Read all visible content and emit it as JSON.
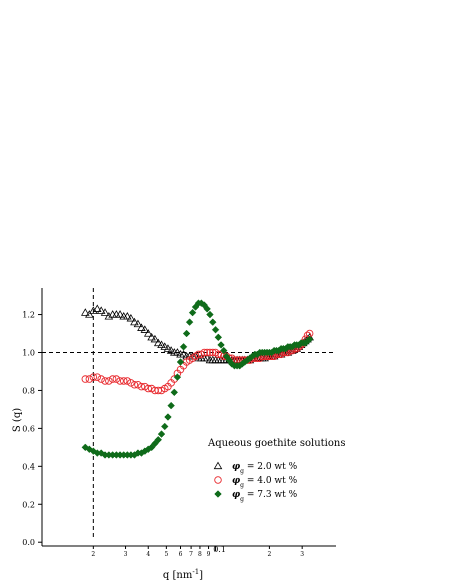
{
  "chart_data": {
    "type": "scatter",
    "title": "",
    "xlabel": "q [nm",
    "xlabel_sup": "-1",
    "xlabel_end": "]",
    "ylabel": "S (q)",
    "xscale": "log",
    "xlim": [
      0.0148,
      0.035
    ],
    "ylim": [
      -0.02,
      1.34
    ],
    "y_ticks": [
      "0.0",
      "0.2",
      "0.4",
      "0.6",
      "0.8",
      "1.0",
      "1.2"
    ],
    "y_tick_values": [
      0.0,
      0.2,
      0.4,
      0.6,
      0.8,
      1.0,
      1.2
    ],
    "x_tick_labels": [
      "2",
      "3",
      "4",
      "5",
      "6",
      "7",
      "8",
      "9",
      "0.1",
      "2",
      "3"
    ],
    "x_tick_values": [
      0.0172,
      0.0189,
      0.0202,
      0.0213,
      0.0222,
      0.0229,
      0.0235,
      0.0241,
      0.0246,
      0.0288,
      0.0317
    ],
    "x_major_label": "0.1",
    "reference_lines": {
      "y": 1.0,
      "x": 0.0172
    },
    "legend": {
      "title": "Aqueous goethite solutions",
      "placement": "lower-right",
      "entries": [
        {
          "symbol": "φ",
          "sub": "g",
          "text": "= 2.0 wt %"
        },
        {
          "symbol": "φ",
          "sub": "g",
          "text": "= 4.0 wt %"
        },
        {
          "symbol": "φ",
          "sub": "g",
          "text": "= 7.3 wt %"
        }
      ]
    },
    "series": [
      {
        "marker": "open-triangle",
        "color": "#000000",
        "x": [
          0.0168,
          0.017,
          0.0172,
          0.0174,
          0.0176,
          0.0178,
          0.018,
          0.0182,
          0.0184,
          0.0186,
          0.0188,
          0.019,
          0.0192,
          0.0194,
          0.0196,
          0.0198,
          0.02,
          0.0202,
          0.0204,
          0.0206,
          0.0208,
          0.021,
          0.0212,
          0.0214,
          0.0216,
          0.0218,
          0.022,
          0.0222,
          0.0224,
          0.0226,
          0.0228,
          0.023,
          0.0232,
          0.0234,
          0.0236,
          0.0238,
          0.024,
          0.0242,
          0.0244,
          0.0246,
          0.0248,
          0.025,
          0.0252,
          0.0254,
          0.0256,
          0.0258,
          0.026,
          0.0262,
          0.0264,
          0.0266,
          0.0268,
          0.027,
          0.0272,
          0.0274,
          0.0276,
          0.0278,
          0.028,
          0.0282,
          0.0284,
          0.0286,
          0.0288,
          0.029,
          0.0292,
          0.0294,
          0.0296,
          0.0298,
          0.03,
          0.0302,
          0.0304,
          0.0306,
          0.0308,
          0.031,
          0.0312,
          0.0314,
          0.0316,
          0.0318,
          0.032,
          0.0322,
          0.0324
        ],
        "y": [
          1.21,
          1.2,
          1.22,
          1.23,
          1.22,
          1.21,
          1.19,
          1.2,
          1.2,
          1.2,
          1.19,
          1.19,
          1.18,
          1.16,
          1.15,
          1.13,
          1.12,
          1.1,
          1.08,
          1.07,
          1.05,
          1.04,
          1.03,
          1.02,
          1.01,
          1.0,
          1.0,
          0.99,
          0.99,
          0.98,
          0.98,
          0.98,
          0.98,
          0.97,
          0.97,
          0.97,
          0.97,
          0.96,
          0.96,
          0.96,
          0.96,
          0.96,
          0.96,
          0.96,
          0.96,
          0.96,
          0.96,
          0.96,
          0.96,
          0.96,
          0.96,
          0.96,
          0.96,
          0.97,
          0.97,
          0.97,
          0.97,
          0.97,
          0.97,
          0.98,
          0.98,
          0.98,
          0.98,
          0.99,
          0.99,
          0.99,
          1.0,
          1.0,
          1.0,
          1.01,
          1.01,
          1.02,
          1.02,
          1.03,
          1.04,
          1.05,
          1.06,
          1.07,
          1.08
        ]
      },
      {
        "marker": "open-circle",
        "color": "#e8282d",
        "x": [
          0.0168,
          0.017,
          0.0172,
          0.0174,
          0.0176,
          0.0178,
          0.018,
          0.0182,
          0.0184,
          0.0186,
          0.0188,
          0.019,
          0.0192,
          0.0194,
          0.0196,
          0.0198,
          0.02,
          0.0202,
          0.0204,
          0.0206,
          0.0208,
          0.021,
          0.0212,
          0.0214,
          0.0216,
          0.0218,
          0.022,
          0.0222,
          0.0224,
          0.0226,
          0.0228,
          0.023,
          0.0232,
          0.0234,
          0.0236,
          0.0238,
          0.024,
          0.0242,
          0.0244,
          0.0246,
          0.0248,
          0.025,
          0.0252,
          0.0254,
          0.0256,
          0.0258,
          0.026,
          0.0262,
          0.0264,
          0.0266,
          0.0268,
          0.027,
          0.0272,
          0.0274,
          0.0276,
          0.0278,
          0.028,
          0.0282,
          0.0284,
          0.0286,
          0.0288,
          0.029,
          0.0292,
          0.0294,
          0.0296,
          0.0298,
          0.03,
          0.0302,
          0.0304,
          0.0306,
          0.0308,
          0.031,
          0.0312,
          0.0314,
          0.0316,
          0.0318,
          0.032,
          0.0322,
          0.0324
        ],
        "y": [
          0.86,
          0.86,
          0.87,
          0.87,
          0.86,
          0.85,
          0.85,
          0.86,
          0.86,
          0.85,
          0.85,
          0.85,
          0.84,
          0.83,
          0.83,
          0.82,
          0.82,
          0.81,
          0.81,
          0.8,
          0.8,
          0.8,
          0.81,
          0.82,
          0.84,
          0.86,
          0.89,
          0.91,
          0.93,
          0.95,
          0.96,
          0.97,
          0.98,
          0.99,
          0.99,
          1.0,
          1.0,
          1.0,
          1.0,
          1.0,
          0.99,
          0.99,
          0.98,
          0.98,
          0.97,
          0.97,
          0.96,
          0.96,
          0.96,
          0.96,
          0.96,
          0.96,
          0.96,
          0.97,
          0.97,
          0.97,
          0.97,
          0.98,
          0.98,
          0.98,
          0.98,
          0.98,
          0.98,
          0.99,
          0.99,
          0.99,
          1.0,
          1.0,
          1.0,
          1.01,
          1.01,
          1.02,
          1.02,
          1.03,
          1.04,
          1.05,
          1.07,
          1.09,
          1.1
        ]
      },
      {
        "marker": "filled-diamond",
        "color": "#0f6b1a",
        "x": [
          0.0168,
          0.017,
          0.0172,
          0.0174,
          0.0176,
          0.0178,
          0.018,
          0.0182,
          0.0184,
          0.0186,
          0.0188,
          0.019,
          0.0192,
          0.0194,
          0.0196,
          0.0198,
          0.02,
          0.0202,
          0.0204,
          0.0206,
          0.0208,
          0.021,
          0.0212,
          0.0214,
          0.0216,
          0.0218,
          0.022,
          0.0222,
          0.0224,
          0.0226,
          0.0228,
          0.023,
          0.0232,
          0.0234,
          0.0236,
          0.0238,
          0.024,
          0.0242,
          0.0244,
          0.0246,
          0.0248,
          0.025,
          0.0252,
          0.0254,
          0.0256,
          0.0258,
          0.026,
          0.0262,
          0.0264,
          0.0266,
          0.0268,
          0.027,
          0.0272,
          0.0274,
          0.0276,
          0.0278,
          0.028,
          0.0282,
          0.0284,
          0.0286,
          0.0288,
          0.029,
          0.0292,
          0.0294,
          0.0296,
          0.0298,
          0.03,
          0.0302,
          0.0304,
          0.0306,
          0.0308,
          0.031,
          0.0312,
          0.0314,
          0.0316,
          0.0318,
          0.032,
          0.0322,
          0.0324
        ],
        "y": [
          0.5,
          0.49,
          0.48,
          0.47,
          0.47,
          0.46,
          0.46,
          0.46,
          0.46,
          0.46,
          0.46,
          0.46,
          0.46,
          0.46,
          0.47,
          0.47,
          0.48,
          0.49,
          0.5,
          0.52,
          0.54,
          0.57,
          0.61,
          0.66,
          0.72,
          0.79,
          0.87,
          0.95,
          1.03,
          1.1,
          1.16,
          1.21,
          1.24,
          1.26,
          1.26,
          1.25,
          1.23,
          1.2,
          1.16,
          1.12,
          1.08,
          1.04,
          1.01,
          0.98,
          0.96,
          0.94,
          0.93,
          0.93,
          0.93,
          0.94,
          0.95,
          0.96,
          0.97,
          0.98,
          0.99,
          0.99,
          1.0,
          1.0,
          1.0,
          1.0,
          1.0,
          1.0,
          1.01,
          1.01,
          1.01,
          1.02,
          1.02,
          1.02,
          1.03,
          1.03,
          1.03,
          1.04,
          1.04,
          1.04,
          1.05,
          1.05,
          1.05,
          1.06,
          1.07
        ]
      }
    ]
  }
}
